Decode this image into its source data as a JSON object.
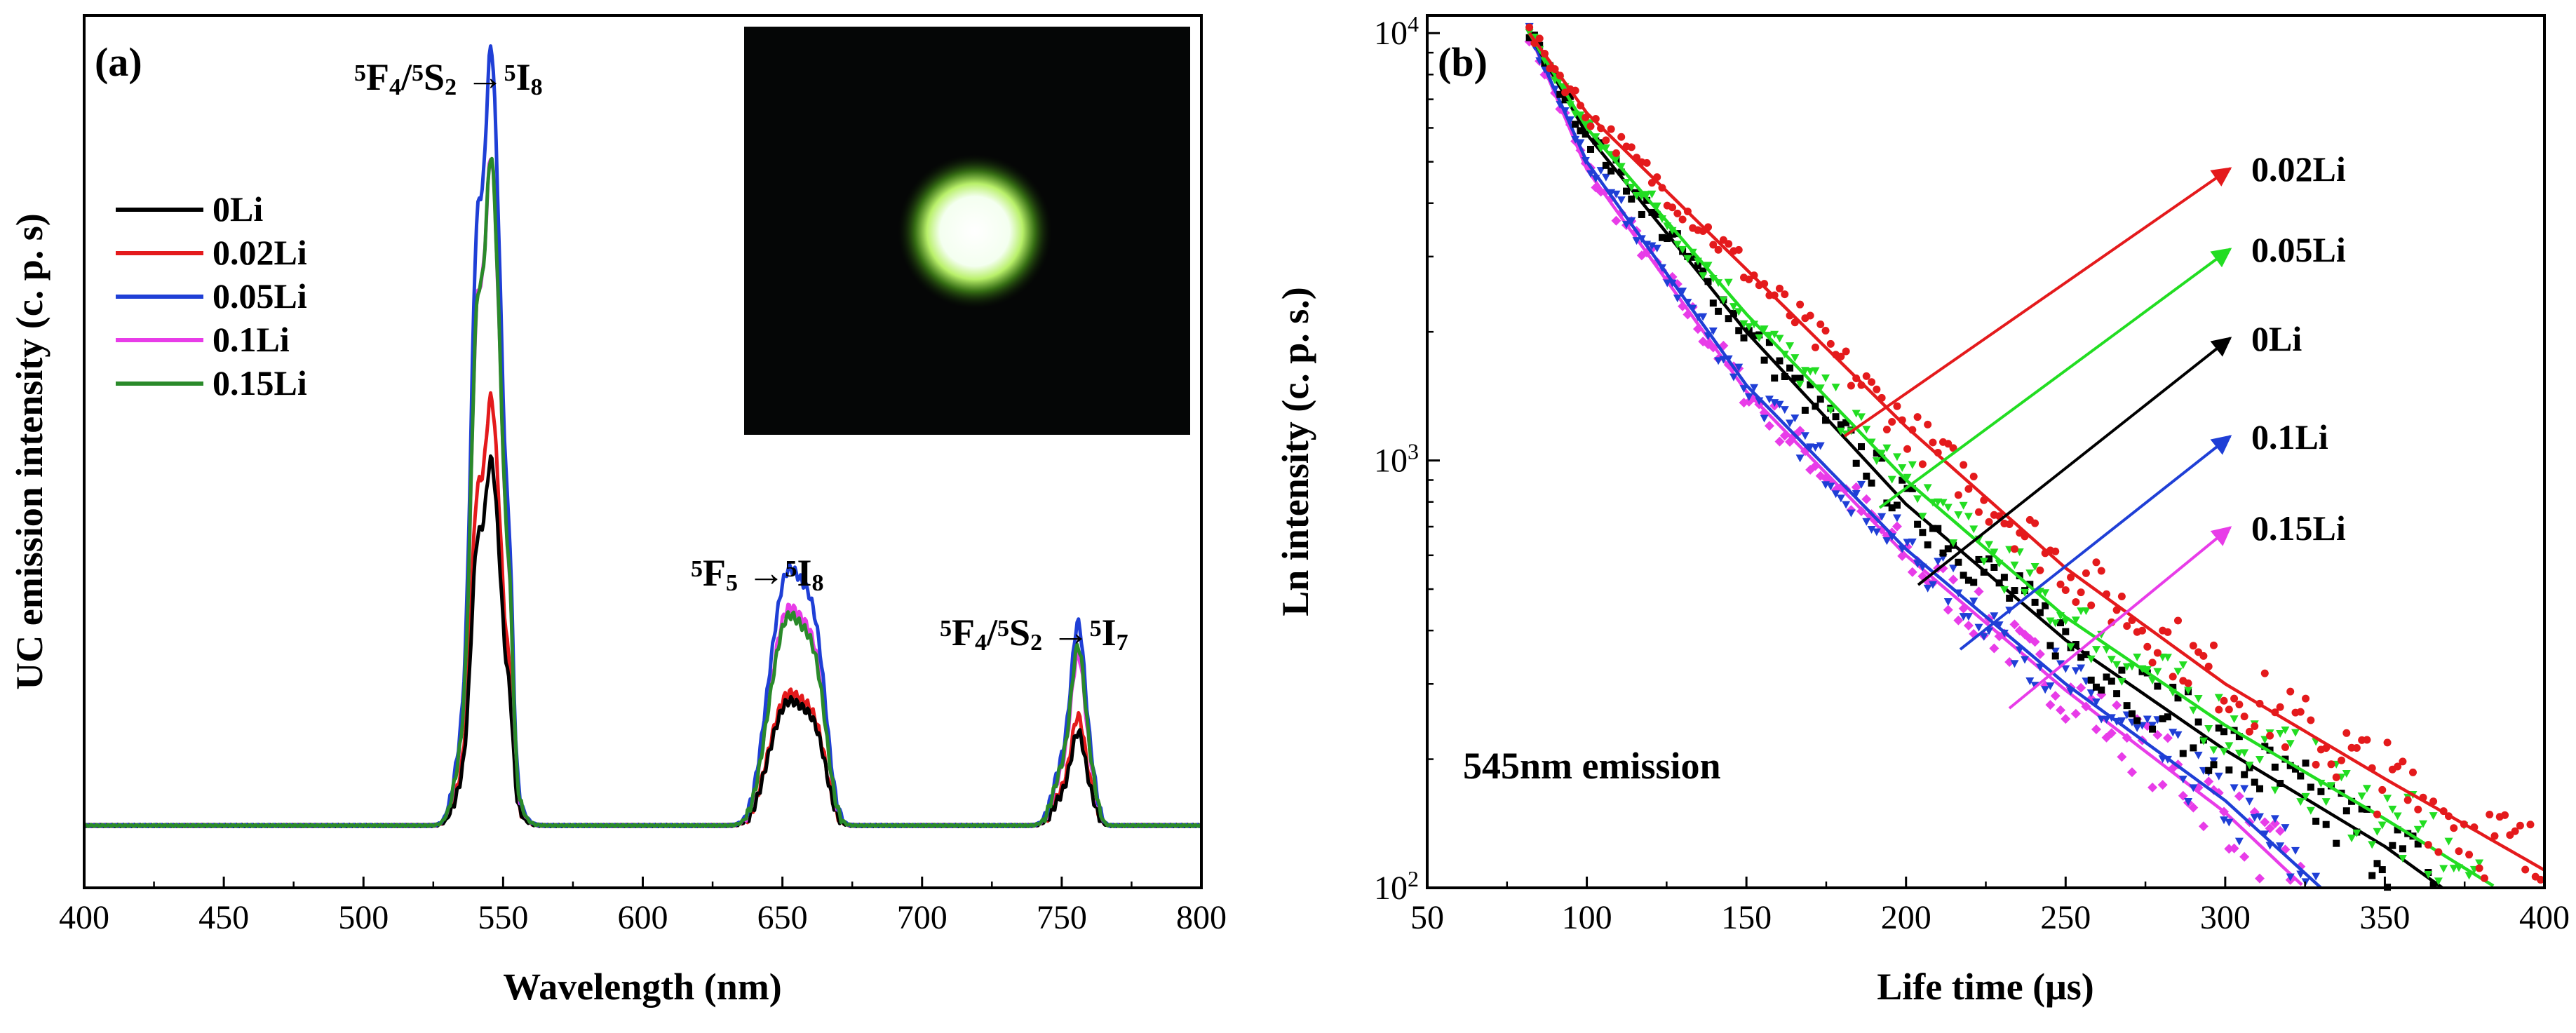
{
  "chart_data": [
    {
      "id": "a",
      "panel_label": "(a)",
      "type": "line",
      "xlabel": "Wavelength (nm)",
      "ylabel": "UC emission intensity (c. p. s)",
      "xlim": [
        400,
        800
      ],
      "x_ticks": [
        400,
        450,
        500,
        550,
        600,
        650,
        700,
        750,
        800
      ],
      "ylim": [
        -0.08,
        1.04
      ],
      "y_units": "arbitrary (normalized, no tick labels shown)",
      "legend_position": "upper-left",
      "series": [
        {
          "name": "0Li",
          "color": "#000000",
          "peaks": [
            0.47,
            0.16,
            0.12
          ]
        },
        {
          "name": "0.02Li",
          "color": "#e41a1c",
          "peaks": [
            0.55,
            0.17,
            0.14
          ]
        },
        {
          "name": "0.05Li",
          "color": "#1f3fd6",
          "peaks": [
            1.0,
            0.33,
            0.26
          ]
        },
        {
          "name": "0.1Li",
          "color": "#e83ce8",
          "peaks": [
            0.86,
            0.28,
            0.22
          ]
        },
        {
          "name": "0.15Li",
          "color": "#2a8a2a",
          "peaks": [
            0.86,
            0.27,
            0.23
          ]
        }
      ],
      "peak_centers_nm": [
        545,
        655,
        756
      ],
      "annotations": [
        {
          "label_parts": [
            "5",
            "F",
            "4",
            "/",
            "5",
            "S",
            "2",
            " →",
            "5",
            "I",
            "8"
          ],
          "near_x": 545
        },
        {
          "label_parts": [
            "5",
            "F",
            "5",
            "",
            "",
            "",
            "",
            " →",
            "5",
            "I",
            "8"
          ],
          "near_x": 655
        },
        {
          "label_parts": [
            "5",
            "F",
            "4",
            "/",
            "5",
            "S",
            "2",
            " →",
            "5",
            "I",
            "7"
          ],
          "near_x": 756
        }
      ],
      "inset": "photo of green upconversion emission spot on dark background"
    },
    {
      "id": "b",
      "panel_label": "(b)",
      "type": "scatter",
      "xlabel": "Life time (μs)",
      "ylabel": "Ln intensity (c. p. s.)",
      "xlim": [
        50,
        400
      ],
      "x_ticks": [
        50,
        100,
        150,
        200,
        250,
        300,
        350,
        400
      ],
      "yscale": "log",
      "ylim": [
        100,
        11000
      ],
      "y_tick_labels": [
        {
          "base": "10",
          "exp": "2",
          "value": 100
        },
        {
          "base": "10",
          "exp": "3",
          "value": 1000
        },
        {
          "base": "10",
          "exp": "4",
          "value": 10000
        }
      ],
      "annotation_text": "545nm emission",
      "series": [
        {
          "name": "0.02Li",
          "color": "#e41a1c",
          "x_end": 400,
          "fit_points": [
            [
              82,
              10000
            ],
            [
              100,
              6500
            ],
            [
              150,
              2800
            ],
            [
              200,
              1200
            ],
            [
              250,
              560
            ],
            [
              300,
              300
            ],
            [
              350,
              180
            ],
            [
              400,
              110
            ]
          ]
        },
        {
          "name": "0.05Li",
          "color": "#22dd22",
          "x_end": 385,
          "fit_points": [
            [
              82,
              10000
            ],
            [
              100,
              6000
            ],
            [
              150,
              2200
            ],
            [
              200,
              900
            ],
            [
              250,
              430
            ],
            [
              300,
              240
            ],
            [
              350,
              145
            ],
            [
              385,
              100
            ]
          ]
        },
        {
          "name": "0Li",
          "color": "#000000",
          "x_end": 368,
          "fit_points": [
            [
              82,
              10000
            ],
            [
              100,
              5800
            ],
            [
              150,
              2000
            ],
            [
              200,
              790
            ],
            [
              250,
              380
            ],
            [
              300,
              210
            ],
            [
              350,
              125
            ],
            [
              368,
              100
            ]
          ]
        },
        {
          "name": "0.1Li",
          "color": "#1f3fd6",
          "x_end": 330,
          "fit_points": [
            [
              82,
              10000
            ],
            [
              100,
              5000
            ],
            [
              150,
              1500
            ],
            [
              200,
              620
            ],
            [
              250,
              300
            ],
            [
              300,
              160
            ],
            [
              330,
              100
            ]
          ]
        },
        {
          "name": "0.15Li",
          "color": "#e83ce8",
          "x_end": 325,
          "fit_points": [
            [
              82,
              10000
            ],
            [
              100,
              4800
            ],
            [
              150,
              1450
            ],
            [
              200,
              600
            ],
            [
              250,
              290
            ],
            [
              300,
              150
            ],
            [
              325,
              100
            ]
          ]
        }
      ]
    }
  ]
}
